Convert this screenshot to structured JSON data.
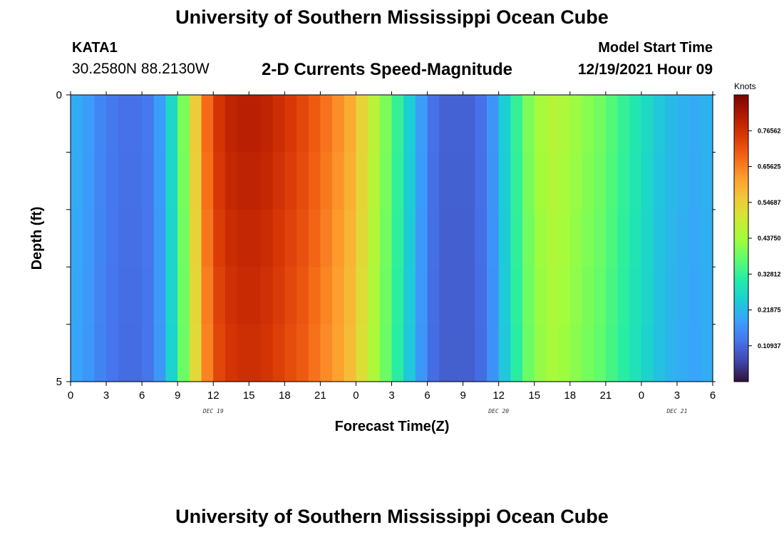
{
  "header": {
    "title": "University of Southern Mississippi Ocean Cube",
    "station_name": "KATA1",
    "station_coords": "30.2580N  88.2130W",
    "subtitle": "2-D Currents Speed-Magnitude",
    "model_start_label": "Model Start Time",
    "model_start_value": "12/19/2021 Hour 09"
  },
  "footer": {
    "title": "University of Southern Mississippi Ocean Cube"
  },
  "chart_data": {
    "type": "heatmap",
    "title": "2-D Currents Speed-Magnitude",
    "xlabel": "Forecast Time(Z)",
    "ylabel": "Depth (ft)",
    "x_tick_labels": [
      "0",
      "3",
      "6",
      "9",
      "12",
      "15",
      "18",
      "21",
      "0",
      "3",
      "6",
      "9",
      "12",
      "15",
      "18",
      "21",
      "0",
      "3",
      "6"
    ],
    "x_date_labels": [
      {
        "label": "DEC 19",
        "tick_index": 4
      },
      {
        "label": "DEC 20",
        "tick_index": 12
      },
      {
        "label": "DEC 21",
        "tick_index": 17
      }
    ],
    "x_range_hours": [
      0,
      54
    ],
    "y_tick_labels": [
      "0",
      "5"
    ],
    "y_range": [
      0,
      5
    ],
    "depth_rows": 5,
    "colorbar": {
      "title": "Knots",
      "tick_labels": [
        "0.76562",
        "0.65625",
        "0.54687",
        "0.43750",
        "0.32812",
        "0.21875",
        "0.10937"
      ],
      "range": [
        0,
        0.875
      ],
      "colors": [
        "#30123b",
        "#4145ab",
        "#4675ed",
        "#39a2fc",
        "#1bcfd4",
        "#24eca6",
        "#61fc6c",
        "#a4fc3b",
        "#d1e834",
        "#f3c63a",
        "#fe9b2d",
        "#f36315",
        "#d93806",
        "#b11901",
        "#7a0403"
      ]
    },
    "speed_knots_by_hour": [
      0.2,
      0.18,
      0.15,
      0.13,
      0.12,
      0.12,
      0.13,
      0.18,
      0.27,
      0.4,
      0.55,
      0.68,
      0.76,
      0.79,
      0.8,
      0.8,
      0.79,
      0.77,
      0.75,
      0.73,
      0.7,
      0.67,
      0.64,
      0.6,
      0.54,
      0.47,
      0.4,
      0.33,
      0.25,
      0.18,
      0.12,
      0.1,
      0.1,
      0.1,
      0.12,
      0.17,
      0.25,
      0.33,
      0.4,
      0.44,
      0.46,
      0.45,
      0.43,
      0.41,
      0.39,
      0.36,
      0.33,
      0.3,
      0.27,
      0.24,
      0.22,
      0.21,
      0.2,
      0.21
    ],
    "depth_factors": [
      1.0,
      0.99,
      0.98,
      0.97,
      0.96
    ]
  }
}
